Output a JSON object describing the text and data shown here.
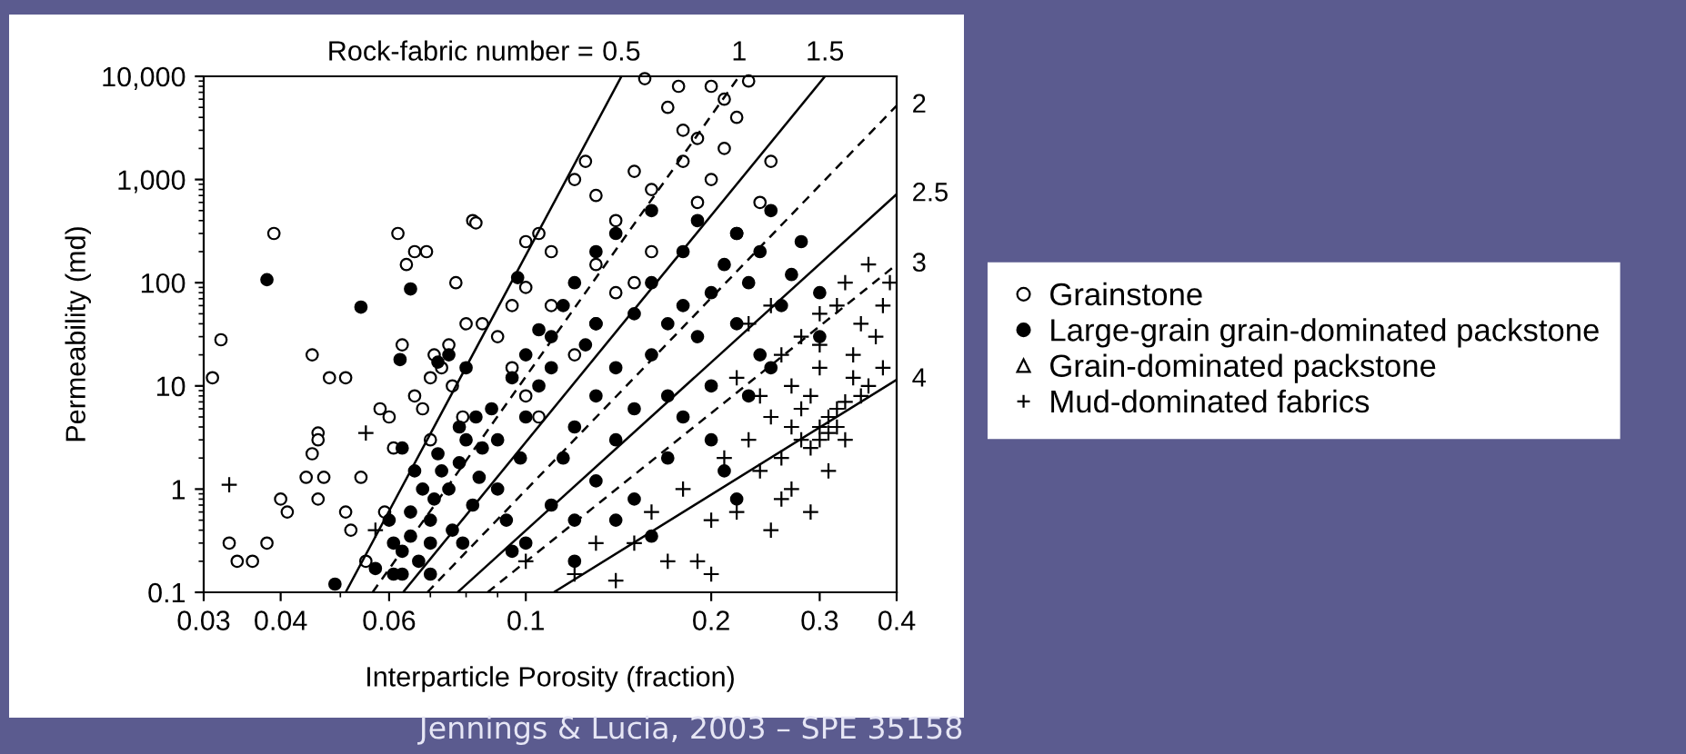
{
  "chart_data": {
    "type": "scatter",
    "xlabel": "Interparticle Porosity (fraction)",
    "ylabel": "Permeability (md)",
    "log": "xy",
    "xlim": [
      0.03,
      0.4
    ],
    "ylim": [
      0.1,
      10000
    ],
    "xticks": [
      0.03,
      0.04,
      0.06,
      0.1,
      0.2,
      0.3,
      0.4
    ],
    "yticks": [
      0.1,
      1,
      10,
      100,
      {
        "value": 1000,
        "label": "1,000"
      },
      {
        "value": 10000,
        "label": "10,000"
      }
    ],
    "grid": false,
    "legend": "right",
    "annotations": [
      "Rock-fabric number =",
      "Jennings & Lucia, 2003 – SPE 35158"
    ],
    "series": [
      {
        "name": "Grainstone",
        "marker": "circle",
        "color": "#ffffff",
        "x": [
          0.032,
          0.031,
          0.033,
          0.034,
          0.036,
          0.038,
          0.04,
          0.041,
          0.039,
          0.044,
          0.045,
          0.046,
          0.046,
          0.047,
          0.046,
          0.045,
          0.048,
          0.051,
          0.051,
          0.052,
          0.054,
          0.055,
          0.058,
          0.059,
          0.06,
          0.061,
          0.062,
          0.064,
          0.066,
          0.069,
          0.063,
          0.066,
          0.068,
          0.07,
          0.071,
          0.073,
          0.075,
          0.077,
          0.08,
          0.082,
          0.083,
          0.085,
          0.076,
          0.079,
          0.07,
          0.09,
          0.095,
          0.1,
          0.1,
          0.105,
          0.11,
          0.12,
          0.13,
          0.125,
          0.14,
          0.15,
          0.16,
          0.17,
          0.18,
          0.18,
          0.19,
          0.2,
          0.21,
          0.2,
          0.22,
          0.23,
          0.21,
          0.24,
          0.25,
          0.22,
          0.19,
          0.16,
          0.15,
          0.14,
          0.13,
          0.12,
          0.11,
          0.13,
          0.095,
          0.1,
          0.105,
          0.156,
          0.177
        ],
        "values": [
          28,
          12,
          0.3,
          0.2,
          0.2,
          0.3,
          0.8,
          0.6,
          300,
          1.3,
          2.2,
          3.5,
          3,
          1.3,
          0.8,
          20,
          12,
          12,
          0.6,
          0.4,
          1.3,
          0.2,
          6,
          0.6,
          5,
          2.5,
          300,
          150,
          200,
          200,
          25,
          8,
          6,
          3,
          20,
          15,
          25,
          100,
          40,
          400,
          380,
          40,
          10,
          5,
          12,
          30,
          60,
          90,
          250,
          300,
          60,
          1000,
          700,
          1500,
          400,
          1200,
          800,
          5000,
          3000,
          1500,
          2500,
          8000,
          6000,
          1000,
          4000,
          9000,
          2000,
          600,
          1500,
          300,
          600,
          200,
          100,
          80,
          40,
          20,
          200,
          150,
          15,
          8,
          5,
          9500,
          8000
        ]
      },
      {
        "name": "Large-grain grain-dominated packstone",
        "marker": "circle",
        "color": "#000000",
        "x": [
          0.038,
          0.054,
          0.065,
          0.097,
          0.049,
          0.057,
          0.061,
          0.063,
          0.06,
          0.061,
          0.063,
          0.065,
          0.065,
          0.067,
          0.07,
          0.07,
          0.071,
          0.073,
          0.075,
          0.076,
          0.078,
          0.079,
          0.082,
          0.084,
          0.085,
          0.063,
          0.066,
          0.068,
          0.072,
          0.078,
          0.08,
          0.083,
          0.088,
          0.09,
          0.09,
          0.093,
          0.095,
          0.098,
          0.1,
          0.105,
          0.11,
          0.1,
          0.095,
          0.11,
          0.115,
          0.12,
          0.12,
          0.13,
          0.13,
          0.14,
          0.14,
          0.15,
          0.15,
          0.16,
          0.16,
          0.17,
          0.17,
          0.18,
          0.18,
          0.19,
          0.2,
          0.2,
          0.21,
          0.22,
          0.22,
          0.23,
          0.24,
          0.24,
          0.25,
          0.26,
          0.27,
          0.28,
          0.3,
          0.3,
          0.13,
          0.12,
          0.14,
          0.16,
          0.19,
          0.115,
          0.13,
          0.17,
          0.15,
          0.18,
          0.2,
          0.21,
          0.23,
          0.25,
          0.11,
          0.125,
          0.1,
          0.12,
          0.16,
          0.14,
          0.07,
          0.22,
          0.105,
          0.075,
          0.08,
          0.0625,
          0.072
        ],
        "values": [
          107,
          58,
          87,
          112,
          0.12,
          0.17,
          0.15,
          0.15,
          0.5,
          0.3,
          0.25,
          0.35,
          0.6,
          0.2,
          0.3,
          0.5,
          0.8,
          1.5,
          1,
          0.4,
          1.8,
          0.3,
          0.7,
          1.3,
          2.5,
          2.5,
          1.5,
          1.0,
          2.2,
          4,
          3,
          5,
          6,
          3,
          1,
          0.5,
          0.25,
          2,
          5,
          10,
          30,
          20,
          12,
          0.7,
          2,
          4,
          0.5,
          1.2,
          8,
          15,
          3,
          50,
          6,
          20,
          100,
          40,
          8,
          200,
          60,
          30,
          10,
          80,
          150,
          40,
          300,
          100,
          20,
          200,
          500,
          60,
          120,
          250,
          30,
          80,
          200,
          100,
          300,
          500,
          400,
          60,
          40,
          2,
          0.8,
          5,
          3,
          1.5,
          8,
          15,
          15,
          25,
          0.3,
          0.2,
          0.35,
          0.5,
          0.15,
          0.8,
          35,
          20,
          15,
          18,
          17
        ]
      },
      {
        "name": "Grain-dominated packstone",
        "marker": "triangle",
        "color": "#ffffff"
      },
      {
        "name": "Mud-dominated fabrics",
        "marker": "cross",
        "color": "#000000",
        "x": [
          0.033,
          0.055,
          0.057,
          0.1,
          0.12,
          0.15,
          0.16,
          0.18,
          0.19,
          0.2,
          0.21,
          0.22,
          0.23,
          0.24,
          0.25,
          0.25,
          0.26,
          0.27,
          0.27,
          0.28,
          0.28,
          0.29,
          0.29,
          0.3,
          0.3,
          0.3,
          0.31,
          0.31,
          0.32,
          0.32,
          0.33,
          0.33,
          0.34,
          0.35,
          0.35,
          0.36,
          0.37,
          0.38,
          0.38,
          0.39,
          0.3,
          0.28,
          0.26,
          0.24,
          0.23,
          0.22,
          0.33,
          0.36,
          0.32,
          0.27,
          0.26,
          0.31,
          0.34,
          0.29,
          0.2,
          0.17,
          0.13,
          0.14,
          0.25,
          0.3
        ],
        "values": [
          1.1,
          3.5,
          0.4,
          0.2,
          0.15,
          0.3,
          0.6,
          1,
          0.2,
          0.5,
          2,
          0.6,
          3,
          1.5,
          5,
          0.4,
          2,
          10,
          4,
          3,
          6,
          2.5,
          8,
          4,
          3,
          15,
          5,
          3.5,
          4,
          6,
          7,
          3,
          20,
          8,
          40,
          10,
          30,
          60,
          15,
          100,
          50,
          30,
          20,
          8,
          40,
          12,
          100,
          150,
          60,
          1,
          0.8,
          1.5,
          12,
          0.6,
          0.15,
          0.2,
          0.3,
          0.13,
          60,
          25
        ]
      },
      {
        "name": "0.5",
        "type": "line",
        "line_style": "solid",
        "color": "#000000",
        "x": [
          0.051,
          0.143
        ],
        "values": [
          0.1,
          10000
        ]
      },
      {
        "name": "1",
        "type": "line",
        "line_style": "dashed",
        "color": "#000000",
        "x": [
          0.0564,
          0.222
        ],
        "values": [
          0.1,
          10000
        ]
      },
      {
        "name": "1.5",
        "type": "line",
        "line_style": "solid",
        "color": "#000000",
        "x": [
          0.0632,
          0.306
        ],
        "values": [
          0.1,
          10000
        ]
      },
      {
        "name": "2",
        "type": "line",
        "line_style": "dashed",
        "color": "#000000",
        "x": [
          0.0692,
          0.4
        ],
        "values": [
          0.1,
          5200
        ]
      },
      {
        "name": "2.5",
        "type": "line",
        "line_style": "solid",
        "color": "#000000",
        "x": [
          0.0775,
          0.4
        ],
        "values": [
          0.1,
          720
        ]
      },
      {
        "name": "3",
        "type": "line",
        "line_style": "dashed",
        "color": "#000000",
        "x": [
          0.0867,
          0.4
        ],
        "values": [
          0.1,
          150
        ]
      },
      {
        "name": "4",
        "type": "line",
        "line_style": "solid",
        "color": "#000000",
        "x": [
          0.111,
          0.4
        ],
        "values": [
          0.1,
          11.5
        ]
      }
    ]
  }
}
